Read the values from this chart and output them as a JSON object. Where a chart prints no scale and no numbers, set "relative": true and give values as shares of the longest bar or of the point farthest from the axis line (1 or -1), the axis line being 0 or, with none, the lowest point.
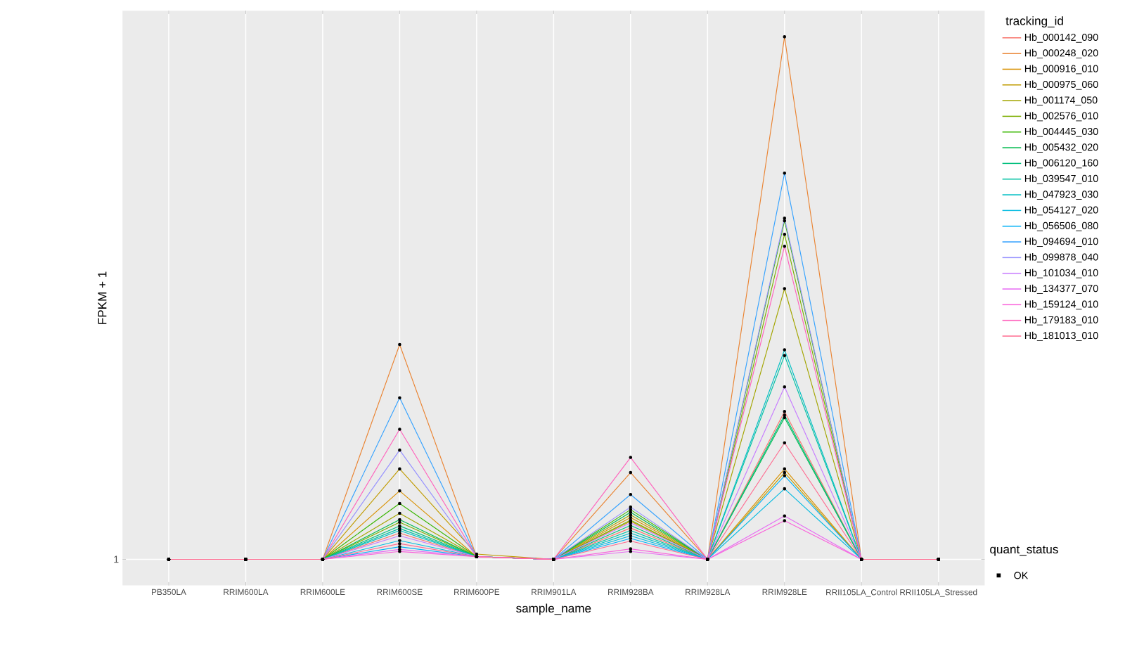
{
  "chart_data": {
    "type": "line",
    "relative": true,
    "xlabel": "sample_name",
    "ylabel": "FPKM + 1",
    "legend_title": "tracking_id",
    "legend": "right",
    "grid": true,
    "marker": "circle",
    "annotations": [
      "1",
      "quant_status",
      "OK"
    ],
    "categories": [
      "PB350LA",
      "RRIM600LA",
      "RRIM600LE",
      "RRIM600SE",
      "RRIM600PE",
      "RRIM901LA",
      "RRIM928BA",
      "RRIM928LA",
      "RRIM928LE",
      "RRII105LA_Control",
      "RRII105LA_Stressed"
    ],
    "series": [
      {
        "name": "Hb_000142_090",
        "color": "#F8766D",
        "values": [
          0,
          0,
          0,
          0.05,
          0.005,
          0,
          0.06,
          0,
          0.283,
          0,
          0
        ]
      },
      {
        "name": "Hb_000248_020",
        "color": "#EA8331",
        "values": [
          0,
          0,
          0,
          0.411,
          0.005,
          0,
          0.166,
          0,
          1.0,
          0,
          0
        ]
      },
      {
        "name": "Hb_000916_010",
        "color": "#D89000",
        "values": [
          0,
          0,
          0,
          0.131,
          0.005,
          0,
          0.08,
          0,
          0.173,
          0,
          0
        ]
      },
      {
        "name": "Hb_000975_060",
        "color": "#C09B00",
        "values": [
          0,
          0,
          0,
          0.173,
          0.01,
          0,
          0.073,
          0,
          0.166,
          0,
          0
        ]
      },
      {
        "name": "Hb_001174_050",
        "color": "#A3A500",
        "values": [
          0,
          0,
          0,
          0.088,
          0.005,
          0,
          0.085,
          0,
          0.518,
          0,
          0
        ]
      },
      {
        "name": "Hb_002576_010",
        "color": "#7CAE00",
        "values": [
          0,
          0,
          0,
          0.071,
          0.005,
          0,
          0.075,
          0,
          0.622,
          0,
          0
        ]
      },
      {
        "name": "Hb_004445_030",
        "color": "#39B600",
        "values": [
          0,
          0,
          0,
          0.107,
          0.005,
          0,
          0.095,
          0,
          0.648,
          0,
          0
        ]
      },
      {
        "name": "Hb_005432_020",
        "color": "#00BB4E",
        "values": [
          0,
          0,
          0,
          0.076,
          0.005,
          0,
          0.09,
          0,
          0.271,
          0,
          0
        ]
      },
      {
        "name": "Hb_006120_160",
        "color": "#00BF7D",
        "values": [
          0,
          0,
          0,
          0.064,
          0.005,
          0,
          0.065,
          0,
          0.276,
          0,
          0
        ]
      },
      {
        "name": "Hb_039547_010",
        "color": "#00C1A3",
        "values": [
          0,
          0,
          0,
          0.059,
          0.005,
          0,
          0.055,
          0,
          0.39,
          0,
          0
        ]
      },
      {
        "name": "Hb_047923_030",
        "color": "#00BFC4",
        "values": [
          0,
          0,
          0,
          0.055,
          0.005,
          0,
          0.05,
          0,
          0.401,
          0,
          0
        ]
      },
      {
        "name": "Hb_054127_020",
        "color": "#00BAE0",
        "values": [
          0,
          0,
          0,
          0.036,
          0.005,
          0,
          0.045,
          0,
          0.135,
          0,
          0
        ]
      },
      {
        "name": "Hb_056506_080",
        "color": "#00B0F6",
        "values": [
          0,
          0,
          0,
          0.024,
          0.005,
          0,
          0.04,
          0,
          0.16,
          0,
          0
        ]
      },
      {
        "name": "Hb_094694_010",
        "color": "#35A2FF",
        "values": [
          0,
          0,
          0,
          0.309,
          0.005,
          0,
          0.124,
          0,
          0.739,
          0,
          0
        ]
      },
      {
        "name": "Hb_099878_040",
        "color": "#9590FF",
        "values": [
          0,
          0,
          0,
          0.209,
          0.005,
          0,
          0.1,
          0,
          0.653,
          0,
          0
        ]
      },
      {
        "name": "Hb_101034_010",
        "color": "#C77CFF",
        "values": [
          0,
          0,
          0,
          0.045,
          0.005,
          0,
          0.07,
          0,
          0.33,
          0,
          0
        ]
      },
      {
        "name": "Hb_134377_070",
        "color": "#E76BF3",
        "values": [
          0,
          0,
          0,
          0.019,
          0.005,
          0,
          0.015,
          0,
          0.083,
          0,
          0
        ]
      },
      {
        "name": "Hb_159124_010",
        "color": "#FA62DB",
        "values": [
          0,
          0,
          0,
          0.015,
          0.005,
          0,
          0.02,
          0,
          0.074,
          0,
          0
        ]
      },
      {
        "name": "Hb_179183_010",
        "color": "#FF62BC",
        "values": [
          0,
          0,
          0,
          0.249,
          0.005,
          0,
          0.195,
          0,
          0.599,
          0,
          0
        ]
      },
      {
        "name": "Hb_181013_010",
        "color": "#FF6C91",
        "values": [
          0,
          0,
          0,
          0.03,
          0.005,
          0,
          0.035,
          0,
          0.223,
          0,
          0
        ]
      }
    ]
  }
}
